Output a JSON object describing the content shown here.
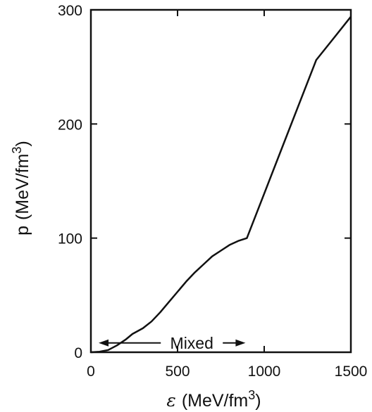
{
  "chart_data": {
    "type": "line",
    "title": "",
    "xlabel": {
      "symbol": "ε",
      "text": "(MeV/fm",
      "sup": "3",
      "close": ")"
    },
    "ylabel": {
      "symbol": "p",
      "text": "(MeV/fm",
      "sup": "3",
      "close": ")"
    },
    "xlim": [
      0,
      1500
    ],
    "ylim": [
      0,
      300
    ],
    "xticks": [
      0,
      500,
      1000,
      1500
    ],
    "yticks": [
      0,
      100,
      200,
      300
    ],
    "xtick_labels": [
      "0",
      "500",
      "1000",
      "1500"
    ],
    "ytick_labels": [
      "0",
      "100",
      "200",
      "300"
    ],
    "grid": false,
    "series": [
      {
        "x": [
          0,
          50,
          100,
          150,
          200,
          240,
          300,
          350,
          400,
          450,
          500,
          550,
          600,
          650,
          700,
          750,
          800,
          850,
          900,
          1000,
          1100,
          1200,
          1300,
          1400,
          1500
        ],
        "y": [
          0,
          0.5,
          2,
          6,
          11,
          16,
          21,
          27,
          35,
          44,
          53,
          62,
          70,
          77,
          84,
          89,
          94,
          97.5,
          100,
          139,
          178,
          217,
          256,
          275,
          294
        ]
      }
    ],
    "annotations": [
      {
        "text": "Mixed",
        "x_from": 240,
        "x_to": 900,
        "y": 10,
        "arrows": "both-outward"
      }
    ]
  }
}
